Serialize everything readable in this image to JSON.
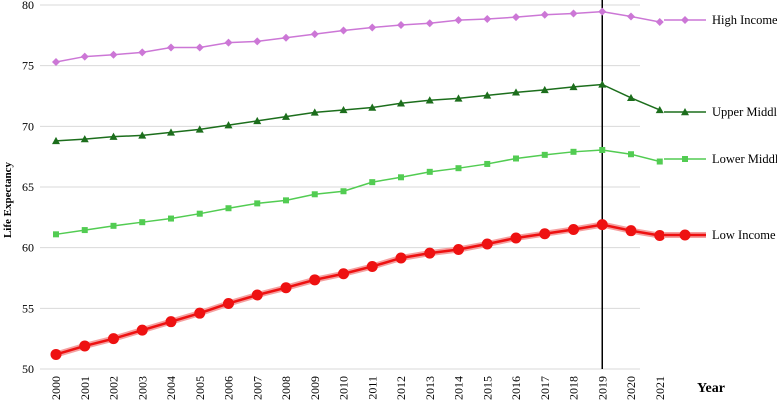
{
  "chart_data": {
    "type": "line",
    "title": "",
    "xlabel": "Year",
    "ylabel": "Life Expectancy",
    "ylim": [
      50,
      80
    ],
    "yticks": [
      50,
      55,
      60,
      65,
      70,
      75,
      80
    ],
    "grid": "horizontal",
    "legend_position": "right",
    "reference_line": {
      "x": "2019",
      "color": "#000000"
    },
    "categories": [
      "2000",
      "2001",
      "2002",
      "2003",
      "2004",
      "2005",
      "2006",
      "2007",
      "2008",
      "2009",
      "2010",
      "2011",
      "2012",
      "2013",
      "2014",
      "2015",
      "2016",
      "2017",
      "2018",
      "2019",
      "2020",
      "2021"
    ],
    "series": [
      {
        "name": "High Income",
        "color": "#cc77d6",
        "marker": "diamond",
        "values": [
          75.3,
          75.75,
          75.9,
          76.1,
          76.5,
          76.5,
          76.9,
          77.0,
          77.3,
          77.6,
          77.9,
          78.15,
          78.35,
          78.5,
          78.75,
          78.85,
          79.0,
          79.2,
          79.3,
          79.45,
          79.05,
          78.6
        ]
      },
      {
        "name": "Upper Middle",
        "color": "#1c6e1c",
        "marker": "triangle",
        "values": [
          68.8,
          68.95,
          69.15,
          69.25,
          69.5,
          69.75,
          70.1,
          70.45,
          70.8,
          71.15,
          71.35,
          71.55,
          71.9,
          72.15,
          72.3,
          72.55,
          72.8,
          73.0,
          73.25,
          73.45,
          72.35,
          71.35
        ]
      },
      {
        "name": "Lower Middle",
        "color": "#52cc52",
        "marker": "square",
        "values": [
          61.1,
          61.45,
          61.8,
          62.1,
          62.4,
          62.8,
          63.25,
          63.65,
          63.9,
          64.4,
          64.65,
          65.4,
          65.8,
          66.25,
          66.55,
          66.9,
          67.35,
          67.65,
          67.9,
          68.05,
          67.7,
          67.1
        ]
      },
      {
        "name": "Low Income",
        "color": "#ee1111",
        "marker": "circle",
        "values": [
          51.2,
          51.9,
          52.5,
          53.2,
          53.9,
          54.6,
          55.4,
          56.1,
          56.7,
          57.35,
          57.85,
          58.45,
          59.15,
          59.55,
          59.85,
          60.3,
          60.8,
          61.15,
          61.5,
          61.9,
          61.4,
          61.0
        ]
      }
    ]
  }
}
